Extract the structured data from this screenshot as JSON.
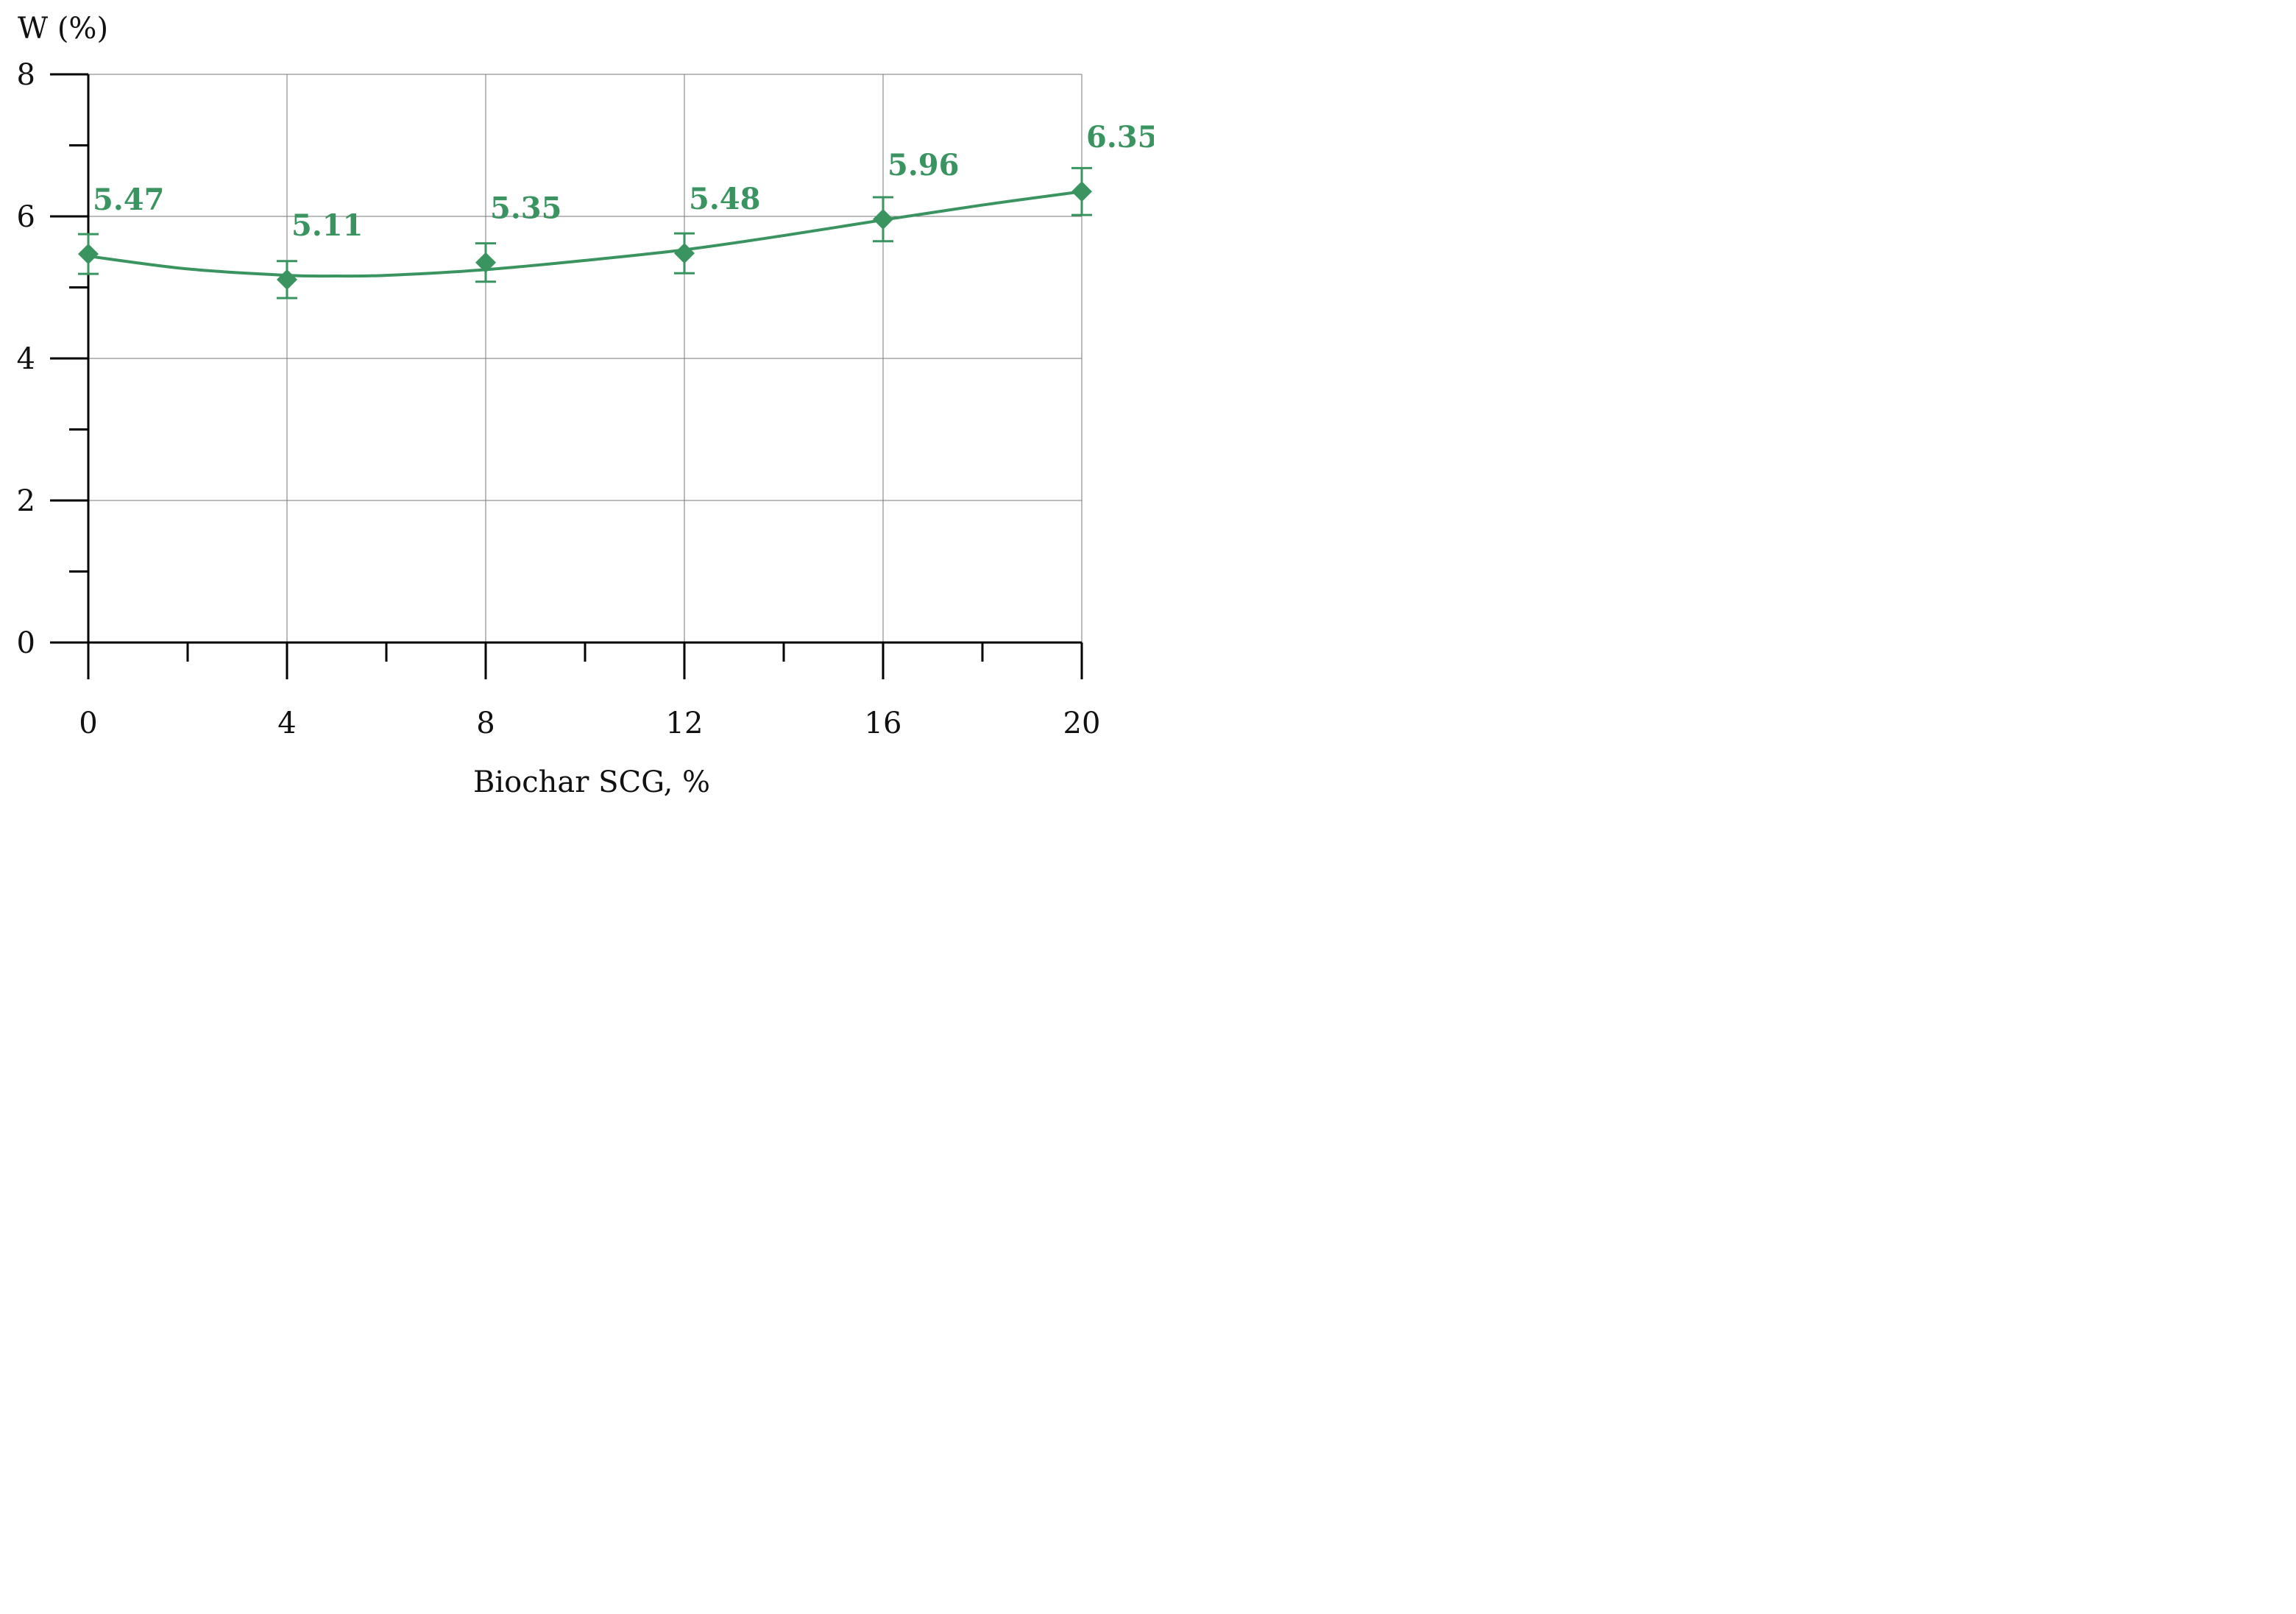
{
  "chart_data": {
    "type": "line",
    "ylabel": "W (%)",
    "xlabel": "Biochar SCG, %",
    "xlim": [
      0,
      20
    ],
    "ylim": [
      0,
      8
    ],
    "x_ticks": [
      0,
      4,
      8,
      12,
      16,
      20
    ],
    "x_minor_ticks": [
      2,
      6,
      10,
      14,
      18
    ],
    "y_ticks": [
      0,
      2,
      4,
      6,
      8
    ],
    "y_minor_ticks": [
      1,
      3,
      5,
      7
    ],
    "grid": true,
    "series_color": "#3a9460",
    "series": [
      {
        "x": [
          0,
          4,
          8,
          12,
          16,
          20
        ],
        "values": [
          5.47,
          5.11,
          5.35,
          5.48,
          5.96,
          6.35
        ],
        "labels": [
          "5.47",
          "5.11",
          "5.35",
          "5.48",
          "5.96",
          "6.35"
        ],
        "error": [
          0.28,
          0.26,
          0.27,
          0.28,
          0.31,
          0.33
        ]
      }
    ],
    "trendline": {
      "type": "polynomial",
      "x": [
        0,
        2,
        4,
        5,
        6,
        8,
        10,
        12,
        14,
        16,
        18,
        20
      ],
      "y": [
        5.44,
        5.26,
        5.17,
        5.16,
        5.17,
        5.25,
        5.38,
        5.53,
        5.73,
        5.95,
        6.16,
        6.35
      ]
    }
  }
}
